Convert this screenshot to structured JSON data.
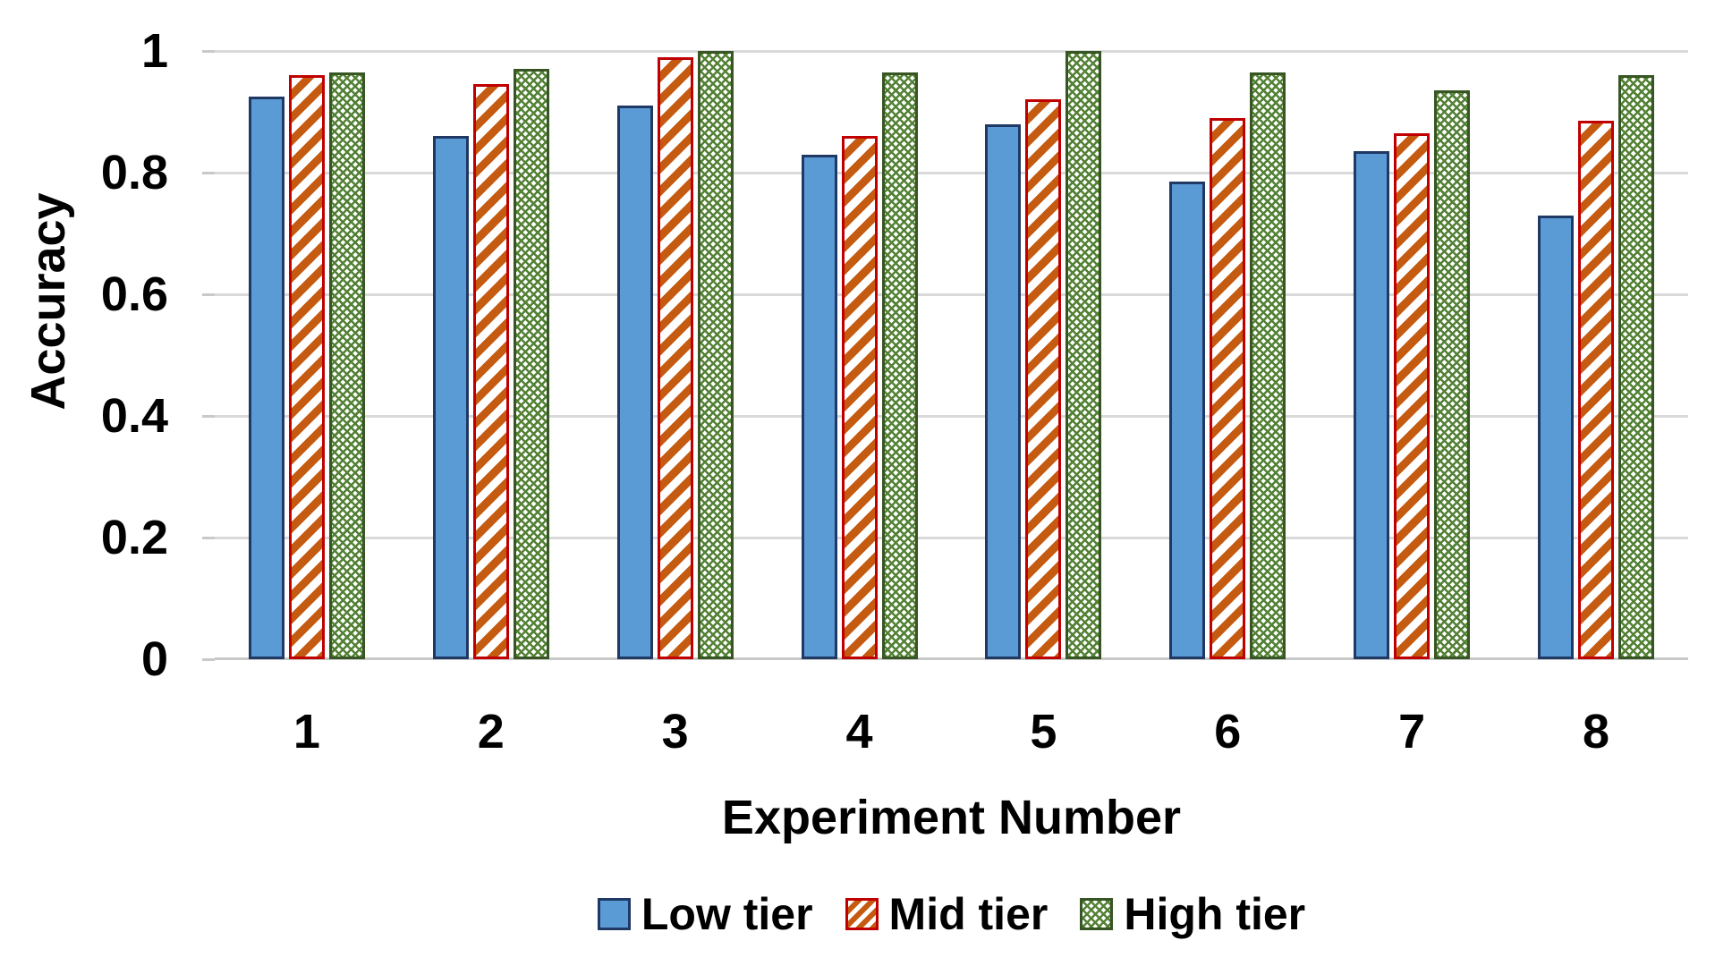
{
  "chart_data": {
    "type": "bar",
    "title": "",
    "xlabel": "Experiment Number",
    "ylabel": "Accuracy",
    "categories": [
      "1",
      "2",
      "3",
      "4",
      "5",
      "6",
      "7",
      "8"
    ],
    "series": [
      {
        "name": "Low tier",
        "pattern": "solid-blue",
        "values": [
          0.925,
          0.86,
          0.91,
          0.83,
          0.88,
          0.785,
          0.835,
          0.73
        ]
      },
      {
        "name": "Mid tier",
        "pattern": "orange-diagonal-hatch",
        "values": [
          0.96,
          0.945,
          0.99,
          0.86,
          0.92,
          0.89,
          0.865,
          0.885
        ]
      },
      {
        "name": "High tier",
        "pattern": "green-diamond-lattice",
        "values": [
          0.965,
          0.97,
          1.0,
          0.965,
          1.0,
          0.965,
          0.935,
          0.96
        ]
      }
    ],
    "ylim": [
      0,
      1
    ],
    "yticks": [
      {
        "label": "1",
        "value": 1.0
      },
      {
        "label": "0.8",
        "value": 0.8
      },
      {
        "label": "0.6",
        "value": 0.6
      },
      {
        "label": "0.4",
        "value": 0.4
      },
      {
        "label": "0.2",
        "value": 0.2
      },
      {
        "label": "0",
        "value": 0.0
      }
    ],
    "grid": true,
    "legend_position": "bottom",
    "colors": {
      "low_fill": "#5B9BD5",
      "low_border": "#1F3864",
      "mid_stripe": "#C55A11",
      "mid_border": "#C00000",
      "high_lattice": "#538135",
      "high_border": "#375623",
      "gridline": "#D9D9D9",
      "axis_line": "#C9C9C9",
      "text": "#000000",
      "background": "#FFFFFF"
    }
  }
}
